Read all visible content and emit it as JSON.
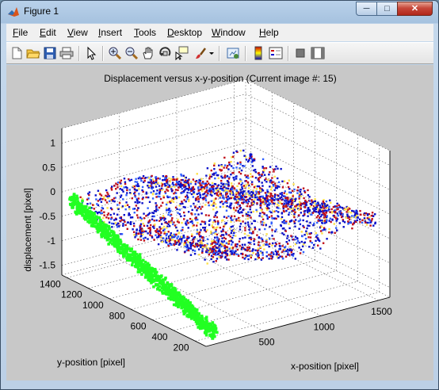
{
  "window": {
    "title": "Figure 1",
    "minimize": "─",
    "maximize": "□",
    "close": "✕"
  },
  "menu": [
    "File",
    "Edit",
    "View",
    "Insert",
    "Tools",
    "Desktop",
    "Window",
    "Help"
  ],
  "toolbar_icons": [
    "new-figure-icon",
    "open-file-icon",
    "save-icon",
    "print-icon",
    "edit-plot-icon",
    "zoom-in-icon",
    "zoom-out-icon",
    "pan-icon",
    "rotate-3d-icon",
    "data-cursor-icon",
    "brush-icon",
    "brush-dropdown-icon",
    "link-plot-icon",
    "colorbar-icon",
    "legend-icon",
    "hide-plot-tools-icon",
    "show-plot-tools-icon"
  ],
  "colors": {
    "surface_blue": "#0a10c8",
    "surface_red": "#c0101a",
    "surface_yellow": "#ffe24a",
    "green_points": "#22ff22",
    "figure_bg": "#c8c8c8"
  },
  "chart_data": {
    "type": "scatter",
    "title": "Displacement versus x-y-position (Current image #: 15)",
    "xlabel": "x-position [pixel]",
    "ylabel": "y-position [pixel]",
    "zlabel": "displacement [pixel]",
    "x_ticks": [
      "500",
      "1000",
      "1500"
    ],
    "y_ticks": [
      "200",
      "400",
      "600",
      "800",
      "1000",
      "1200",
      "1400"
    ],
    "z_ticks": [
      "-1.5",
      "-1",
      "-0.5",
      "0",
      "0.5",
      "1"
    ],
    "xlim": [
      0,
      1600
    ],
    "ylim": [
      100,
      1450
    ],
    "zlim": [
      -1.7,
      1.3
    ],
    "grid": true,
    "series": [
      {
        "z_mean": -0.15,
        "z_spread": 0.25
      },
      {
        "x": 50,
        "z_from": -0.2,
        "z_to": -1.5
      }
    ]
  }
}
